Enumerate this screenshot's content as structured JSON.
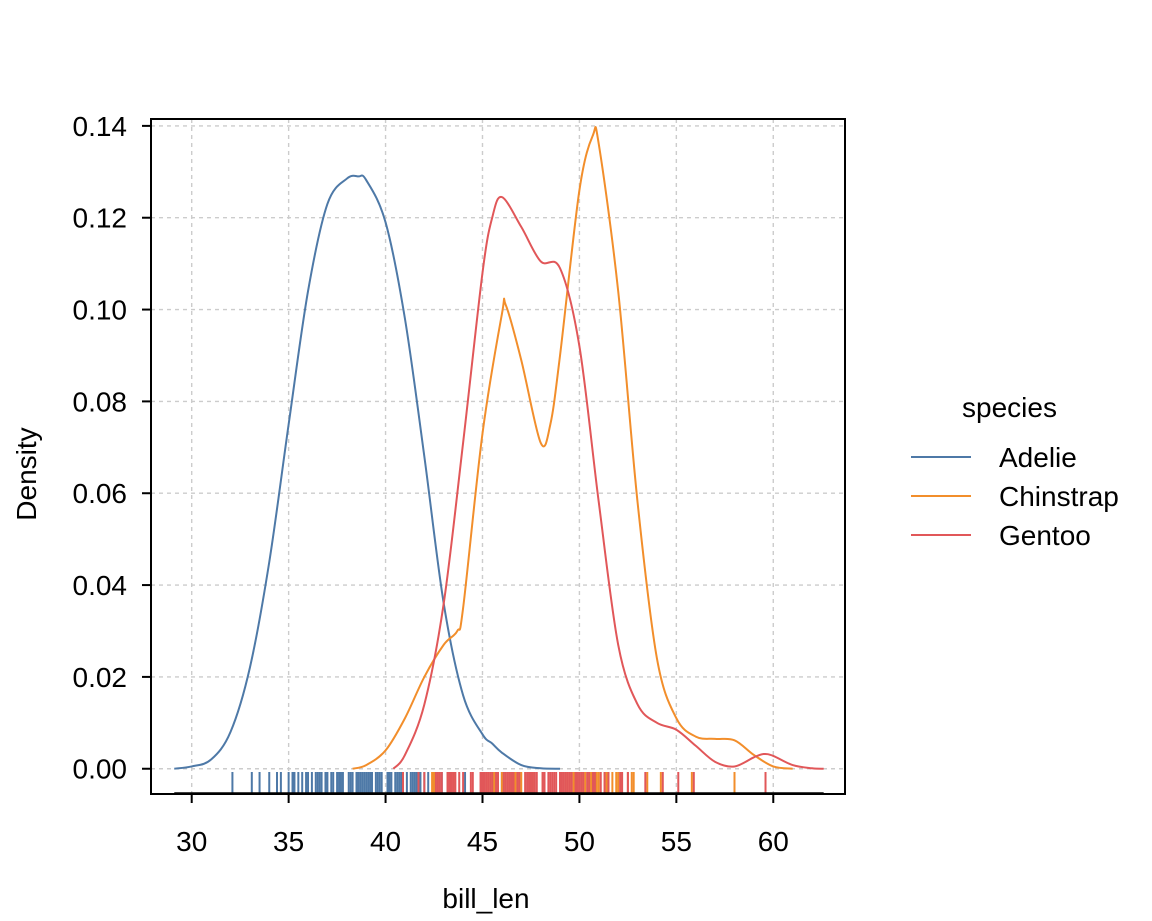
{
  "chart_data": {
    "type": "density",
    "xlabel": "bill_len",
    "ylabel": "Density",
    "xlim": [
      27.9,
      63.7
    ],
    "ylim": [
      -0.0055,
      0.1415
    ],
    "xticks": [
      30,
      35,
      40,
      45,
      50,
      55,
      60
    ],
    "yticks": [
      0.0,
      0.02,
      0.04,
      0.06,
      0.08,
      0.1,
      0.12,
      0.14
    ],
    "ytick_labels": [
      "0.00",
      "0.02",
      "0.04",
      "0.06",
      "0.08",
      "0.10",
      "0.12",
      "0.14"
    ],
    "grid": true,
    "legend": {
      "title": "species",
      "position": "right"
    },
    "series": [
      {
        "name": "Adelie",
        "color": "#4e79a7",
        "x": [
          29.1,
          30,
          31,
          32,
          33,
          34,
          35,
          36,
          37,
          38,
          38.6,
          39,
          40,
          41,
          42,
          43,
          44,
          45,
          45.5,
          46,
          47,
          48,
          49
        ],
        "y": [
          0.0,
          0.0005,
          0.002,
          0.008,
          0.022,
          0.045,
          0.075,
          0.104,
          0.123,
          0.1285,
          0.129,
          0.1282,
          0.119,
          0.098,
          0.068,
          0.036,
          0.016,
          0.0075,
          0.0055,
          0.0035,
          0.0008,
          0.0001,
          0.0
        ]
      },
      {
        "name": "Chinstrap",
        "color": "#f28e2b",
        "x": [
          38.3,
          39,
          40,
          41,
          42,
          43,
          43.7,
          44,
          45,
          46,
          46.2,
          47,
          48,
          48.5,
          49,
          50,
          50.7,
          51,
          52,
          53,
          54,
          55,
          56,
          57,
          58,
          59,
          60,
          61
        ],
        "y": [
          0.0,
          0.0008,
          0.004,
          0.011,
          0.02,
          0.027,
          0.03,
          0.035,
          0.073,
          0.099,
          0.101,
          0.089,
          0.071,
          0.075,
          0.09,
          0.126,
          0.138,
          0.136,
          0.104,
          0.058,
          0.024,
          0.011,
          0.007,
          0.0065,
          0.0062,
          0.003,
          0.0005,
          0.0
        ]
      },
      {
        "name": "Gentoo",
        "color": "#e15759",
        "x": [
          40.4,
          41,
          42,
          43,
          44,
          45,
          45.5,
          46,
          47,
          48,
          49,
          50,
          51,
          52,
          53,
          54,
          55,
          56,
          57,
          58,
          59,
          59.5,
          60,
          61,
          62,
          62.6
        ],
        "y": [
          0.0,
          0.003,
          0.014,
          0.036,
          0.071,
          0.108,
          0.12,
          0.1245,
          0.118,
          0.1105,
          0.109,
          0.092,
          0.058,
          0.027,
          0.014,
          0.01,
          0.0085,
          0.005,
          0.0015,
          0.0005,
          0.0025,
          0.0032,
          0.0028,
          0.0008,
          0.0001,
          0.0
        ]
      }
    ],
    "rug": {
      "Adelie": [
        32.1,
        33.1,
        33.5,
        34.0,
        34.4,
        34.6,
        35.0,
        35.2,
        35.3,
        35.5,
        35.7,
        35.9,
        36.0,
        36.2,
        36.4,
        36.5,
        36.6,
        36.7,
        36.9,
        37.0,
        37.2,
        37.3,
        37.5,
        37.6,
        37.7,
        37.8,
        38.1,
        38.2,
        38.3,
        38.5,
        38.6,
        38.7,
        38.8,
        38.9,
        39.0,
        39.1,
        39.2,
        39.3,
        39.5,
        39.6,
        39.7,
        39.8,
        40.1,
        40.2,
        40.3,
        40.5,
        40.6,
        40.7,
        40.8,
        40.9,
        41.1,
        41.3,
        41.4,
        41.5,
        41.6,
        41.8,
        42.0,
        42.2,
        42.5,
        42.9,
        43.2,
        44.1,
        45.6,
        46.0
      ],
      "Chinstrap": [
        40.9,
        42.4,
        42.5,
        42.7,
        43.2,
        43.5,
        45.2,
        45.4,
        45.5,
        45.6,
        45.7,
        46.0,
        46.1,
        46.2,
        46.4,
        46.5,
        46.6,
        46.7,
        46.8,
        46.9,
        47.0,
        47.5,
        47.6,
        48.1,
        49.0,
        49.3,
        49.5,
        49.6,
        49.7,
        49.8,
        50.1,
        50.2,
        50.3,
        50.5,
        50.6,
        50.7,
        50.8,
        50.9,
        51.0,
        51.3,
        51.4,
        51.5,
        51.7,
        51.9,
        52.0,
        52.2,
        52.5,
        52.7,
        52.8,
        53.5,
        54.2,
        55.8,
        58.0
      ],
      "Gentoo": [
        40.9,
        41.7,
        42.0,
        42.6,
        42.7,
        42.8,
        42.9,
        43.2,
        43.3,
        43.4,
        43.5,
        43.6,
        43.8,
        44.0,
        44.4,
        44.5,
        44.9,
        45.0,
        45.1,
        45.2,
        45.3,
        45.4,
        45.5,
        45.7,
        45.8,
        46.1,
        46.2,
        46.3,
        46.4,
        46.5,
        46.6,
        46.8,
        46.9,
        47.2,
        47.3,
        47.4,
        47.5,
        47.6,
        47.7,
        47.8,
        48.1,
        48.2,
        48.4,
        48.5,
        48.6,
        48.7,
        48.8,
        49.0,
        49.1,
        49.2,
        49.3,
        49.4,
        49.5,
        49.6,
        49.8,
        49.9,
        50.0,
        50.1,
        50.2,
        50.4,
        50.5,
        50.7,
        50.8,
        51.1,
        51.3,
        51.5,
        52.1,
        52.2,
        52.5,
        53.4,
        54.3,
        55.1,
        55.9,
        59.6
      ]
    }
  }
}
